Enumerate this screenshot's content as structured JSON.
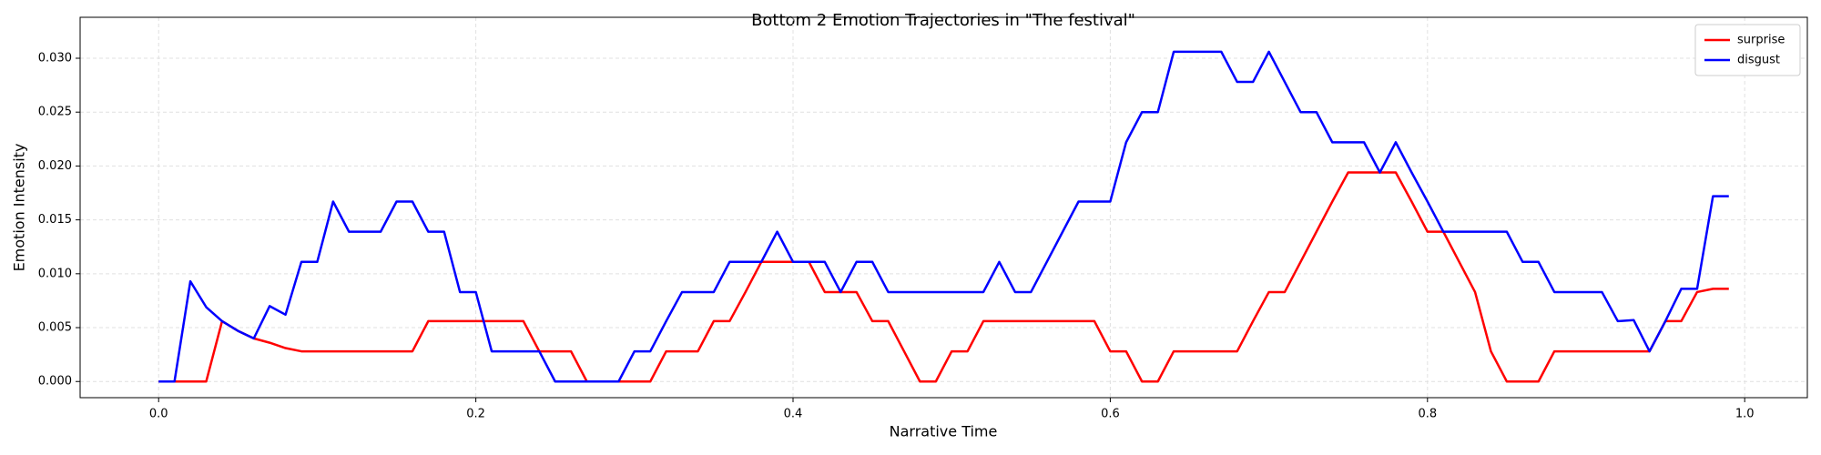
{
  "chart_data": {
    "type": "line",
    "title": "Bottom 2 Emotion Trajectories in \"The festival\"",
    "xlabel": "Narrative Time",
    "ylabel": "Emotion Intensity",
    "x": [
      0,
      0.01,
      0.02,
      0.03,
      0.04,
      0.05,
      0.06,
      0.07,
      0.08,
      0.09,
      0.1,
      0.11,
      0.12,
      0.13,
      0.14,
      0.15,
      0.16,
      0.17,
      0.18,
      0.19,
      0.2,
      0.21,
      0.22,
      0.23,
      0.24,
      0.25,
      0.26,
      0.27,
      0.28,
      0.29,
      0.3,
      0.31,
      0.32,
      0.33,
      0.34,
      0.35,
      0.36,
      0.37,
      0.38,
      0.39,
      0.4,
      0.41,
      0.42,
      0.43,
      0.44,
      0.45,
      0.46,
      0.47,
      0.48,
      0.49,
      0.5,
      0.51,
      0.52,
      0.53,
      0.54,
      0.55,
      0.56,
      0.57,
      0.58,
      0.59,
      0.6,
      0.61,
      0.62,
      0.63,
      0.64,
      0.65,
      0.66,
      0.67,
      0.68,
      0.69,
      0.7,
      0.71,
      0.72,
      0.73,
      0.74,
      0.75,
      0.76,
      0.77,
      0.78,
      0.79,
      0.8,
      0.81,
      0.82,
      0.83,
      0.84,
      0.85,
      0.86,
      0.87,
      0.88,
      0.89,
      0.9,
      0.91,
      0.92,
      0.93,
      0.94,
      0.95,
      0.96,
      0.97,
      0.98,
      0.99
    ],
    "series": [
      {
        "name": "surprise",
        "color": "#ff0000",
        "values": [
          0,
          0,
          0,
          0,
          0.0056,
          0.0047,
          0.004,
          0.0036,
          0.0031,
          0.0028,
          0.0028,
          0.0028,
          0.0028,
          0.0028,
          0.0028,
          0.0028,
          0.0028,
          0.0056,
          0.0056,
          0.0056,
          0.0056,
          0.0056,
          0.0056,
          0.0056,
          0.0028,
          0.0028,
          0.0028,
          0,
          0,
          0,
          0,
          0,
          0.0028,
          0.0028,
          0.0028,
          0.0056,
          0.0056,
          0.0083,
          0.0111,
          0.0111,
          0.0111,
          0.0111,
          0.0083,
          0.0083,
          0.0083,
          0.0056,
          0.0056,
          0.0028,
          0,
          0,
          0.0028,
          0.0028,
          0.0056,
          0.0056,
          0.0056,
          0.0056,
          0.0056,
          0.0056,
          0.0056,
          0.0056,
          0.0028,
          0.0028,
          0,
          0,
          0.0028,
          0.0028,
          0.0028,
          0.0028,
          0.0028,
          0.0056,
          0.0083,
          0.0083,
          0.0111,
          0.0139,
          0.0167,
          0.0194,
          0.0194,
          0.0194,
          0.0194,
          0.0167,
          0.0139,
          0.0139,
          0.0111,
          0.0083,
          0.0028,
          0,
          0,
          0,
          0.0028,
          0.0028,
          0.0028,
          0.0028,
          0.0028,
          0.0028,
          0.0028,
          0.0056,
          0.0056,
          0.0083,
          0.0086,
          0.0086
        ]
      },
      {
        "name": "disgust",
        "color": "#0000ff",
        "values": [
          0,
          0,
          0.0093,
          0.0069,
          0.0056,
          0.0047,
          0.004,
          0.007,
          0.0062,
          0.0111,
          0.0111,
          0.0167,
          0.0139,
          0.0139,
          0.0139,
          0.0167,
          0.0167,
          0.0139,
          0.0139,
          0.0083,
          0.0083,
          0.0028,
          0.0028,
          0.0028,
          0.0028,
          0,
          0,
          0,
          0,
          0,
          0.0028,
          0.0028,
          0.0056,
          0.0083,
          0.0083,
          0.0083,
          0.0111,
          0.0111,
          0.0111,
          0.0139,
          0.0111,
          0.0111,
          0.0111,
          0.0083,
          0.0111,
          0.0111,
          0.0083,
          0.0083,
          0.0083,
          0.0083,
          0.0083,
          0.0083,
          0.0083,
          0.0111,
          0.0083,
          0.0083,
          0.0111,
          0.0139,
          0.0167,
          0.0167,
          0.0167,
          0.0222,
          0.025,
          0.025,
          0.0306,
          0.0306,
          0.0306,
          0.0306,
          0.0278,
          0.0278,
          0.0306,
          0.0278,
          0.025,
          0.025,
          0.0222,
          0.0222,
          0.0222,
          0.0194,
          0.0222,
          0.0194,
          0.0167,
          0.0139,
          0.0139,
          0.0139,
          0.0139,
          0.0139,
          0.0111,
          0.0111,
          0.0083,
          0.0083,
          0.0083,
          0.0083,
          0.0056,
          0.0057,
          0.0028,
          0.0056,
          0.0086,
          0.0086,
          0.0172,
          0.0172
        ]
      }
    ],
    "xlim": [
      -0.0495,
      1.0395
    ],
    "ylim": [
      -0.0015,
      0.0338
    ],
    "xticks": [
      {
        "value": 0,
        "label": "0.0"
      },
      0.2,
      0.4,
      0.6,
      0.8,
      {
        "value": 1,
        "label": "1.0"
      }
    ],
    "yticks": [
      {
        "value": 0,
        "label": "0.000"
      },
      {
        "value": 0.005,
        "label": "0.005"
      },
      {
        "value": 0.01,
        "label": "0.010"
      },
      {
        "value": 0.015,
        "label": "0.015"
      },
      {
        "value": 0.02,
        "label": "0.020"
      },
      {
        "value": 0.025,
        "label": "0.025"
      },
      {
        "value": 0.03,
        "label": "0.030"
      }
    ],
    "grid": true,
    "legend": "upper right"
  }
}
